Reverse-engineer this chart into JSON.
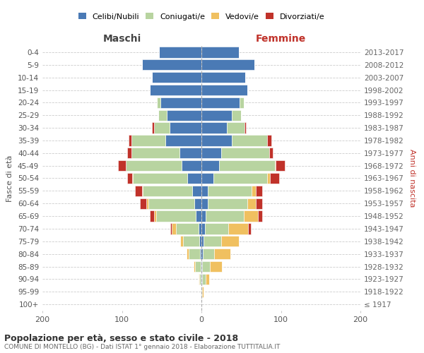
{
  "age_groups": [
    "100+",
    "95-99",
    "90-94",
    "85-89",
    "80-84",
    "75-79",
    "70-74",
    "65-69",
    "60-64",
    "55-59",
    "50-54",
    "45-49",
    "40-44",
    "35-39",
    "30-34",
    "25-29",
    "20-24",
    "15-19",
    "10-14",
    "5-9",
    "0-4"
  ],
  "birth_years": [
    "≤ 1917",
    "1918-1922",
    "1923-1927",
    "1928-1932",
    "1933-1937",
    "1938-1942",
    "1943-1947",
    "1948-1952",
    "1953-1957",
    "1958-1962",
    "1963-1967",
    "1968-1972",
    "1973-1977",
    "1978-1982",
    "1983-1987",
    "1988-1992",
    "1993-1997",
    "1998-2002",
    "2003-2007",
    "2008-2012",
    "2013-2017"
  ],
  "males_celibi": [
    0,
    0,
    1,
    1,
    2,
    3,
    4,
    7,
    9,
    12,
    18,
    25,
    28,
    45,
    40,
    44,
    52,
    65,
    62,
    75,
    53
  ],
  "males_coniugati": [
    0,
    0,
    2,
    7,
    14,
    20,
    28,
    50,
    58,
    62,
    68,
    70,
    60,
    43,
    20,
    10,
    4,
    0,
    0,
    0,
    0
  ],
  "males_vedovi": [
    0,
    0,
    1,
    2,
    3,
    4,
    5,
    3,
    2,
    1,
    1,
    0,
    0,
    0,
    0,
    0,
    0,
    0,
    0,
    0,
    0
  ],
  "males_divorziati": [
    0,
    0,
    0,
    0,
    0,
    0,
    2,
    5,
    8,
    9,
    6,
    10,
    5,
    4,
    2,
    0,
    0,
    0,
    0,
    0,
    0
  ],
  "females_nubili": [
    0,
    0,
    1,
    1,
    2,
    3,
    4,
    5,
    8,
    8,
    15,
    22,
    25,
    38,
    32,
    38,
    48,
    58,
    55,
    67,
    47
  ],
  "females_coniugate": [
    0,
    1,
    4,
    10,
    14,
    22,
    30,
    48,
    50,
    55,
    68,
    70,
    60,
    45,
    22,
    12,
    5,
    0,
    0,
    0,
    0
  ],
  "females_vedove": [
    0,
    2,
    5,
    15,
    20,
    22,
    25,
    18,
    10,
    5,
    3,
    1,
    0,
    0,
    0,
    0,
    0,
    0,
    0,
    0,
    0
  ],
  "females_divorziate": [
    0,
    0,
    0,
    0,
    0,
    0,
    3,
    5,
    8,
    8,
    12,
    12,
    5,
    5,
    2,
    0,
    0,
    0,
    0,
    0,
    0
  ],
  "color_celibi": "#4a7ab5",
  "color_coniugati": "#b8d4a0",
  "color_vedovi": "#f0c060",
  "color_divorziati": "#c0322a",
  "xlim": 200,
  "title": "Popolazione per età, sesso e stato civile - 2018",
  "subtitle": "COMUNE DI MONTELLO (BG) - Dati ISTAT 1° gennaio 2018 - Elaborazione TUTTITALIA.IT",
  "ylabel_left": "Fasce di età",
  "ylabel_right": "Anni di nascita",
  "label_maschi": "Maschi",
  "label_femmine": "Femmine",
  "legend_labels": [
    "Celibi/Nubili",
    "Coniugati/e",
    "Vedovi/e",
    "Divorziati/e"
  ]
}
